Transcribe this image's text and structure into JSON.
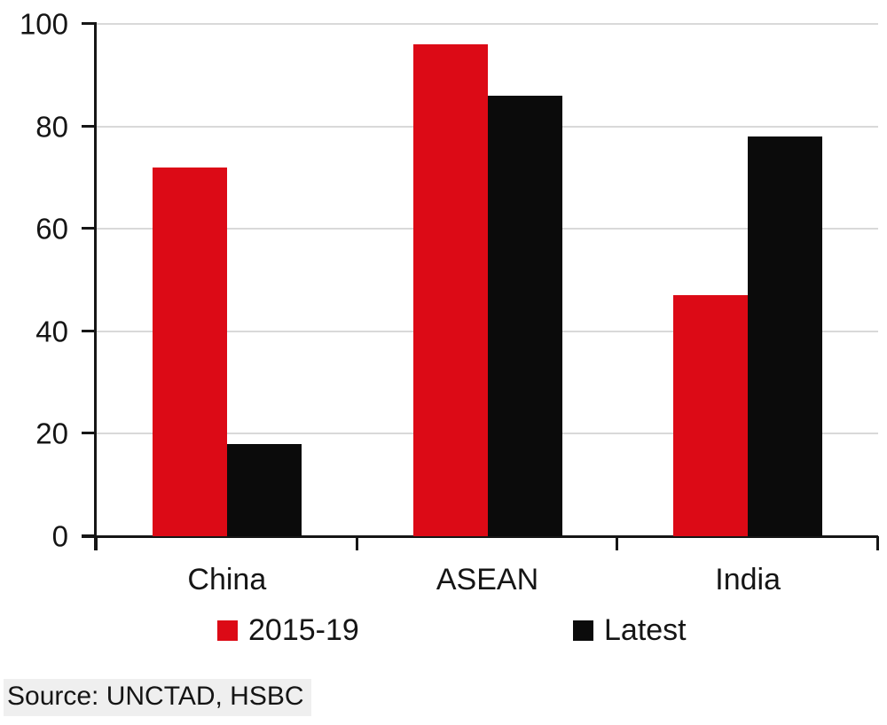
{
  "chart_data": {
    "type": "bar",
    "categories": [
      "China",
      "ASEAN",
      "India"
    ],
    "series": [
      {
        "name": "2015-19",
        "color": "#dc0a16",
        "values": [
          72,
          96,
          47
        ]
      },
      {
        "name": "Latest",
        "color": "#0b0b0b",
        "values": [
          18,
          86,
          78
        ]
      }
    ],
    "title": "",
    "xlabel": "",
    "ylabel": "",
    "ylim": [
      0,
      100
    ],
    "yticks": [
      0,
      20,
      40,
      60,
      80,
      100
    ],
    "grid": "horizontal",
    "gridline_color": "#d9d9d9",
    "axis_color": "#161616",
    "legend_position": "bottom"
  },
  "source": "Source: UNCTAD, HSBC"
}
